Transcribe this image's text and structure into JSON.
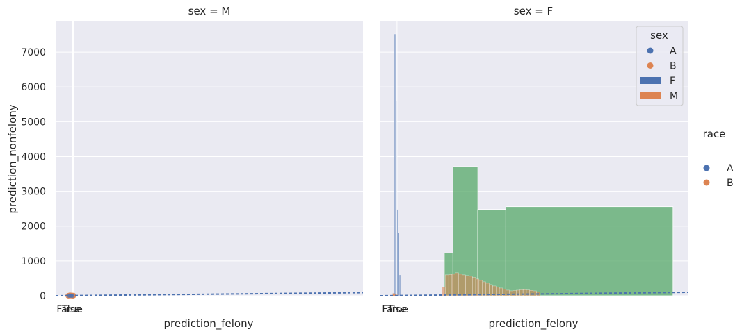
{
  "chart_data": {
    "type": "facet-grid",
    "ylabel": "prediction_nonfelony",
    "yticks": [
      0,
      1000,
      2000,
      3000,
      4000,
      5000,
      6000,
      7000
    ],
    "ylim": [
      0,
      7900
    ],
    "grid": true,
    "legend_placement": "right",
    "colors": {
      "A": "#4c72b0",
      "B": "#dd8452",
      "F": "#4c72b0",
      "M": "#dd8452",
      "hist": "#55a868",
      "background": "#eaeaf2",
      "grid": "#ffffff"
    },
    "facets": [
      {
        "title": "sex = M",
        "xlabel": "prediction_felony",
        "xtick_labels": [
          "False",
          "True"
        ],
        "xlim": [
          0,
          1
        ],
        "thin_lines_x": [
          0.0545,
          0.0568,
          0.0591
        ],
        "scatter_A": [
          [
            0.043,
            0
          ],
          [
            0.046,
            10
          ],
          [
            0.049,
            0
          ],
          [
            0.052,
            5
          ],
          [
            0.055,
            0
          ]
        ],
        "scatter_B": [
          [
            0.041,
            0
          ],
          [
            0.044,
            8
          ],
          [
            0.047,
            15
          ],
          [
            0.05,
            3
          ],
          [
            0.053,
            10
          ],
          [
            0.056,
            0
          ],
          [
            0.058,
            5
          ]
        ],
        "trend_line": [
          [
            0.0,
            0
          ],
          [
            1.0,
            90
          ]
        ]
      },
      {
        "title": "sex = F",
        "xlabel": "prediction_felony",
        "xtick_labels": [
          "False",
          "True"
        ],
        "xlim": [
          0,
          1
        ],
        "hist_F": [
          {
            "x0": 0.046,
            "x1": 0.05,
            "y": 7520
          },
          {
            "x0": 0.05,
            "x1": 0.054,
            "y": 5600
          },
          {
            "x0": 0.054,
            "x1": 0.058,
            "y": 2480
          },
          {
            "x0": 0.058,
            "x1": 0.062,
            "y": 1800
          },
          {
            "x0": 0.062,
            "x1": 0.066,
            "y": 600
          }
        ],
        "hist_M": [
          {
            "x0": 0.04,
            "x1": 0.046,
            "y": 30
          },
          {
            "x0": 0.046,
            "x1": 0.052,
            "y": 20
          },
          {
            "x0": 0.052,
            "x1": 0.058,
            "y": 10
          }
        ],
        "hist_green": [
          {
            "x0": 0.208,
            "x1": 0.236,
            "y": 1230
          },
          {
            "x0": 0.236,
            "x1": 0.317,
            "y": 3710
          },
          {
            "x0": 0.317,
            "x1": 0.408,
            "y": 2480
          },
          {
            "x0": 0.408,
            "x1": 0.952,
            "y": 2560
          }
        ],
        "orange_bars": [
          {
            "x0": 0.2,
            "x1": 0.211,
            "y": 250
          },
          {
            "x0": 0.211,
            "x1": 0.222,
            "y": 600
          },
          {
            "x0": 0.222,
            "x1": 0.233,
            "y": 610
          },
          {
            "x0": 0.233,
            "x1": 0.244,
            "y": 620
          },
          {
            "x0": 0.244,
            "x1": 0.255,
            "y": 660
          },
          {
            "x0": 0.255,
            "x1": 0.266,
            "y": 620
          },
          {
            "x0": 0.266,
            "x1": 0.277,
            "y": 600
          },
          {
            "x0": 0.277,
            "x1": 0.288,
            "y": 580
          },
          {
            "x0": 0.288,
            "x1": 0.299,
            "y": 560
          },
          {
            "x0": 0.299,
            "x1": 0.31,
            "y": 530
          },
          {
            "x0": 0.31,
            "x1": 0.321,
            "y": 480
          },
          {
            "x0": 0.321,
            "x1": 0.332,
            "y": 440
          },
          {
            "x0": 0.332,
            "x1": 0.343,
            "y": 400
          },
          {
            "x0": 0.343,
            "x1": 0.354,
            "y": 360
          },
          {
            "x0": 0.354,
            "x1": 0.365,
            "y": 320
          },
          {
            "x0": 0.365,
            "x1": 0.376,
            "y": 280
          },
          {
            "x0": 0.376,
            "x1": 0.387,
            "y": 250
          },
          {
            "x0": 0.387,
            "x1": 0.398,
            "y": 220
          },
          {
            "x0": 0.398,
            "x1": 0.409,
            "y": 190
          },
          {
            "x0": 0.409,
            "x1": 0.42,
            "y": 160
          },
          {
            "x0": 0.42,
            "x1": 0.431,
            "y": 140
          },
          {
            "x0": 0.431,
            "x1": 0.442,
            "y": 150
          },
          {
            "x0": 0.442,
            "x1": 0.453,
            "y": 160
          },
          {
            "x0": 0.453,
            "x1": 0.464,
            "y": 170
          },
          {
            "x0": 0.464,
            "x1": 0.475,
            "y": 175
          },
          {
            "x0": 0.475,
            "x1": 0.486,
            "y": 165
          },
          {
            "x0": 0.486,
            "x1": 0.497,
            "y": 155
          },
          {
            "x0": 0.497,
            "x1": 0.508,
            "y": 140
          },
          {
            "x0": 0.508,
            "x1": 0.519,
            "y": 110
          }
        ],
        "trend_line": [
          [
            0.0,
            0
          ],
          [
            1.0,
            100
          ]
        ],
        "thin_line_x": 0.054,
        "legend": {
          "title": "sex",
          "markers": [
            {
              "label": "A",
              "color": "#4c72b0",
              "kind": "dot"
            },
            {
              "label": "B",
              "color": "#dd8452",
              "kind": "dot"
            },
            {
              "label": "F",
              "color": "#4c72b0",
              "kind": "patch"
            },
            {
              "label": "M",
              "color": "#dd8452",
              "kind": "patch"
            }
          ]
        }
      }
    ],
    "outer_legend": {
      "title": "race",
      "entries": [
        {
          "label": "A",
          "color": "#4c72b0"
        },
        {
          "label": "B",
          "color": "#dd8452"
        }
      ]
    }
  }
}
